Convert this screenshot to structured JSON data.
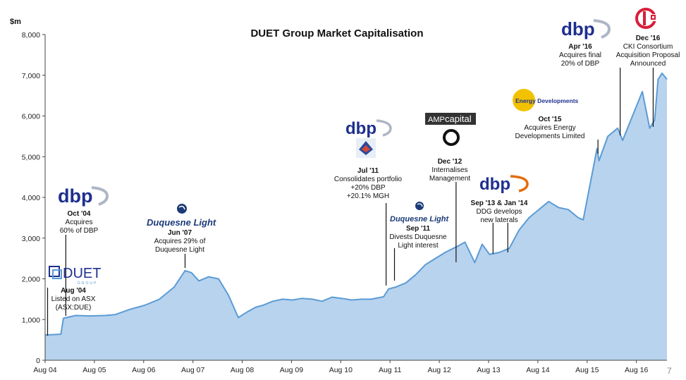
{
  "page_number": "7",
  "colors": {
    "area_fill": "#b8d3ee",
    "line": "#5b9bd5",
    "axis": "#444444",
    "dbp_blue": "#1f2f8f",
    "duquesne_blue": "#1b3a78",
    "cki_red": "#d81e3a",
    "energy_yellow": "#f2c200",
    "amp_gray": "#333333"
  },
  "chart_data": {
    "type": "area",
    "title": "DUET Group Market Capitalisation",
    "ylabel": "$m",
    "xlabel": "",
    "ylim": [
      0,
      8000
    ],
    "yticks": [
      0,
      1000,
      2000,
      3000,
      4000,
      5000,
      6000,
      7000,
      8000
    ],
    "ytick_labels": [
      "0",
      "1,000",
      "2,000",
      "3,000",
      "4,000",
      "5,000",
      "6,000",
      "7,000",
      "8,000"
    ],
    "xlim": [
      2004.58,
      2017.2
    ],
    "xticks": [
      2004.58,
      2005.58,
      2006.58,
      2007.58,
      2008.58,
      2009.58,
      2010.58,
      2011.58,
      2012.58,
      2013.58,
      2014.58,
      2015.58,
      2016.58
    ],
    "xtick_labels": [
      "Aug 04",
      "Aug 05",
      "Aug 06",
      "Aug 07",
      "Aug 08",
      "Aug 09",
      "Aug 10",
      "Aug 11",
      "Aug 12",
      "Aug 13",
      "Aug 14",
      "Aug 15",
      "Aug 16"
    ],
    "grid": false,
    "series": [
      {
        "x": [
          2004.58,
          2004.9,
          2004.95,
          2005.2,
          2005.5,
          2005.8,
          2006.0,
          2006.3,
          2006.6,
          2006.9,
          2007.2,
          2007.42,
          2007.55,
          2007.7,
          2007.9,
          2008.1,
          2008.3,
          2008.5,
          2008.7,
          2008.85,
          2009.0,
          2009.2,
          2009.4,
          2009.6,
          2009.8,
          2010.0,
          2010.2,
          2010.4,
          2010.6,
          2010.8,
          2011.0,
          2011.2,
          2011.45,
          2011.55,
          2011.7,
          2011.9,
          2012.1,
          2012.3,
          2012.5,
          2012.7,
          2012.95,
          2013.1,
          2013.3,
          2013.45,
          2013.6,
          2013.8,
          2014.0,
          2014.2,
          2014.4,
          2014.6,
          2014.8,
          2015.0,
          2015.2,
          2015.4,
          2015.5,
          2015.78,
          2015.82,
          2016.0,
          2016.2,
          2016.3,
          2016.5,
          2016.7,
          2016.85,
          2016.95,
          2017.02,
          2017.1,
          2017.2
        ],
        "values": [
          620,
          640,
          1030,
          1100,
          1090,
          1100,
          1120,
          1250,
          1350,
          1500,
          1800,
          2200,
          2150,
          1950,
          2050,
          2000,
          1600,
          1050,
          1200,
          1300,
          1350,
          1450,
          1500,
          1480,
          1520,
          1500,
          1450,
          1550,
          1520,
          1480,
          1500,
          1500,
          1560,
          1750,
          1800,
          1900,
          2100,
          2350,
          2500,
          2650,
          2800,
          2900,
          2400,
          2850,
          2600,
          2650,
          2750,
          3200,
          3500,
          3700,
          3900,
          3750,
          3700,
          3500,
          3450,
          5200,
          4900,
          5500,
          5700,
          5400,
          6000,
          6600,
          5700,
          5900,
          6900,
          7050,
          6900
        ]
      }
    ],
    "annotations": [
      {
        "id": "aug04",
        "date": "Aug '04",
        "lines": [
          "Listed on ASX",
          "(ASX:DUE)"
        ],
        "logo": "DUET GROUP",
        "at_x": 2004.63
      },
      {
        "id": "oct04",
        "date": "Oct '04",
        "lines": [
          "Acquires",
          "60% of DBP"
        ],
        "logo": "dbp",
        "at_x": 2005.0
      },
      {
        "id": "jun07",
        "date": "Jun '07",
        "lines": [
          "Acquires 29% of",
          "Duquesne Light"
        ],
        "logo": "Duquesne Light",
        "at_x": 2007.42
      },
      {
        "id": "jul11",
        "date": "Jul '11",
        "lines": [
          "Consolidates portfolio",
          "+20% DBP",
          "+20.1% MGH"
        ],
        "logo": "dbp",
        "logo2": "Multinet",
        "at_x": 2011.5
      },
      {
        "id": "sep11",
        "date": "Sep '11",
        "lines": [
          "Divests Duquesne",
          "Light interest"
        ],
        "logo": "Duquesne Light",
        "at_x": 2011.67
      },
      {
        "id": "dec12",
        "date": "Dec '12",
        "lines": [
          "Internalises",
          "Management"
        ],
        "logo": "AMP capital",
        "at_x": 2012.92
      },
      {
        "id": "sep13",
        "date": "Sep '13 & Jan '14",
        "lines": [
          "DDG develops",
          "new laterals"
        ],
        "logo": "dbp",
        "at_x": 2013.67,
        "at_x2": 2013.97
      },
      {
        "id": "oct15",
        "date": "Oct '15",
        "lines": [
          "Acquires Energy",
          "Developments Limited"
        ],
        "logo": "Energy Developments",
        "at_x": 2015.8
      },
      {
        "id": "apr16",
        "date": "Apr '16",
        "lines": [
          "Acquires final",
          "20% of DBP"
        ],
        "logo": "dbp",
        "at_x": 2016.25
      },
      {
        "id": "dec16",
        "date": "Dec '16",
        "lines": [
          "CKI Consortium",
          "Acquisition Proposal",
          "Announced"
        ],
        "logo": "CKI",
        "at_x": 2016.92
      }
    ]
  }
}
